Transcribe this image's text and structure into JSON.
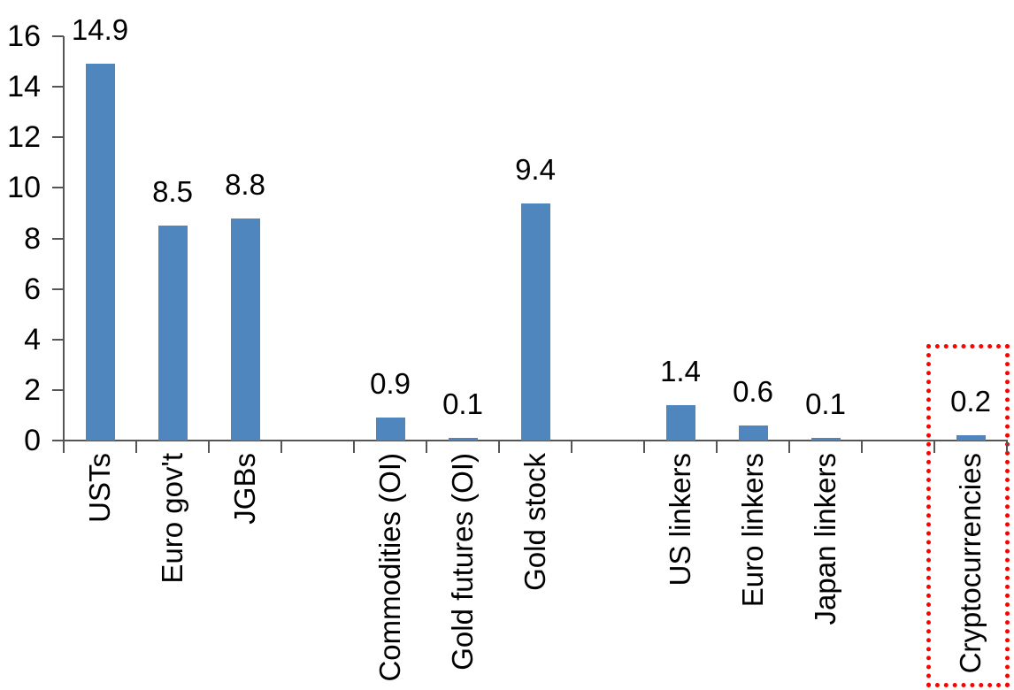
{
  "chart_data": {
    "type": "bar",
    "title": "",
    "xlabel": "",
    "ylabel": "",
    "ylim": [
      0,
      16
    ],
    "y_ticks": [
      0,
      2,
      4,
      6,
      8,
      10,
      12,
      14,
      16
    ],
    "grid": false,
    "legend": "none",
    "bar_color": "#4E86BD",
    "axis_color": "#555555",
    "highlight_box_color": "#FF0000",
    "categories": [
      "USTs",
      "Euro gov't",
      "JGBs",
      "",
      "Commodities (OI)",
      "Gold futures (OI)",
      "Gold stock",
      "",
      "US linkers",
      "Euro linkers",
      "Japan linkers",
      "",
      "Cryptocurrencies"
    ],
    "values": [
      14.9,
      8.5,
      8.8,
      null,
      0.9,
      0.1,
      9.4,
      null,
      1.4,
      0.6,
      0.1,
      null,
      0.2
    ],
    "data_labels": [
      "14.9",
      "8.5",
      "8.8",
      "",
      "0.9",
      "0.1",
      "9.4",
      "",
      "1.4",
      "0.6",
      "0.1",
      "",
      "0.2"
    ],
    "highlighted_category": "Cryptocurrencies"
  }
}
